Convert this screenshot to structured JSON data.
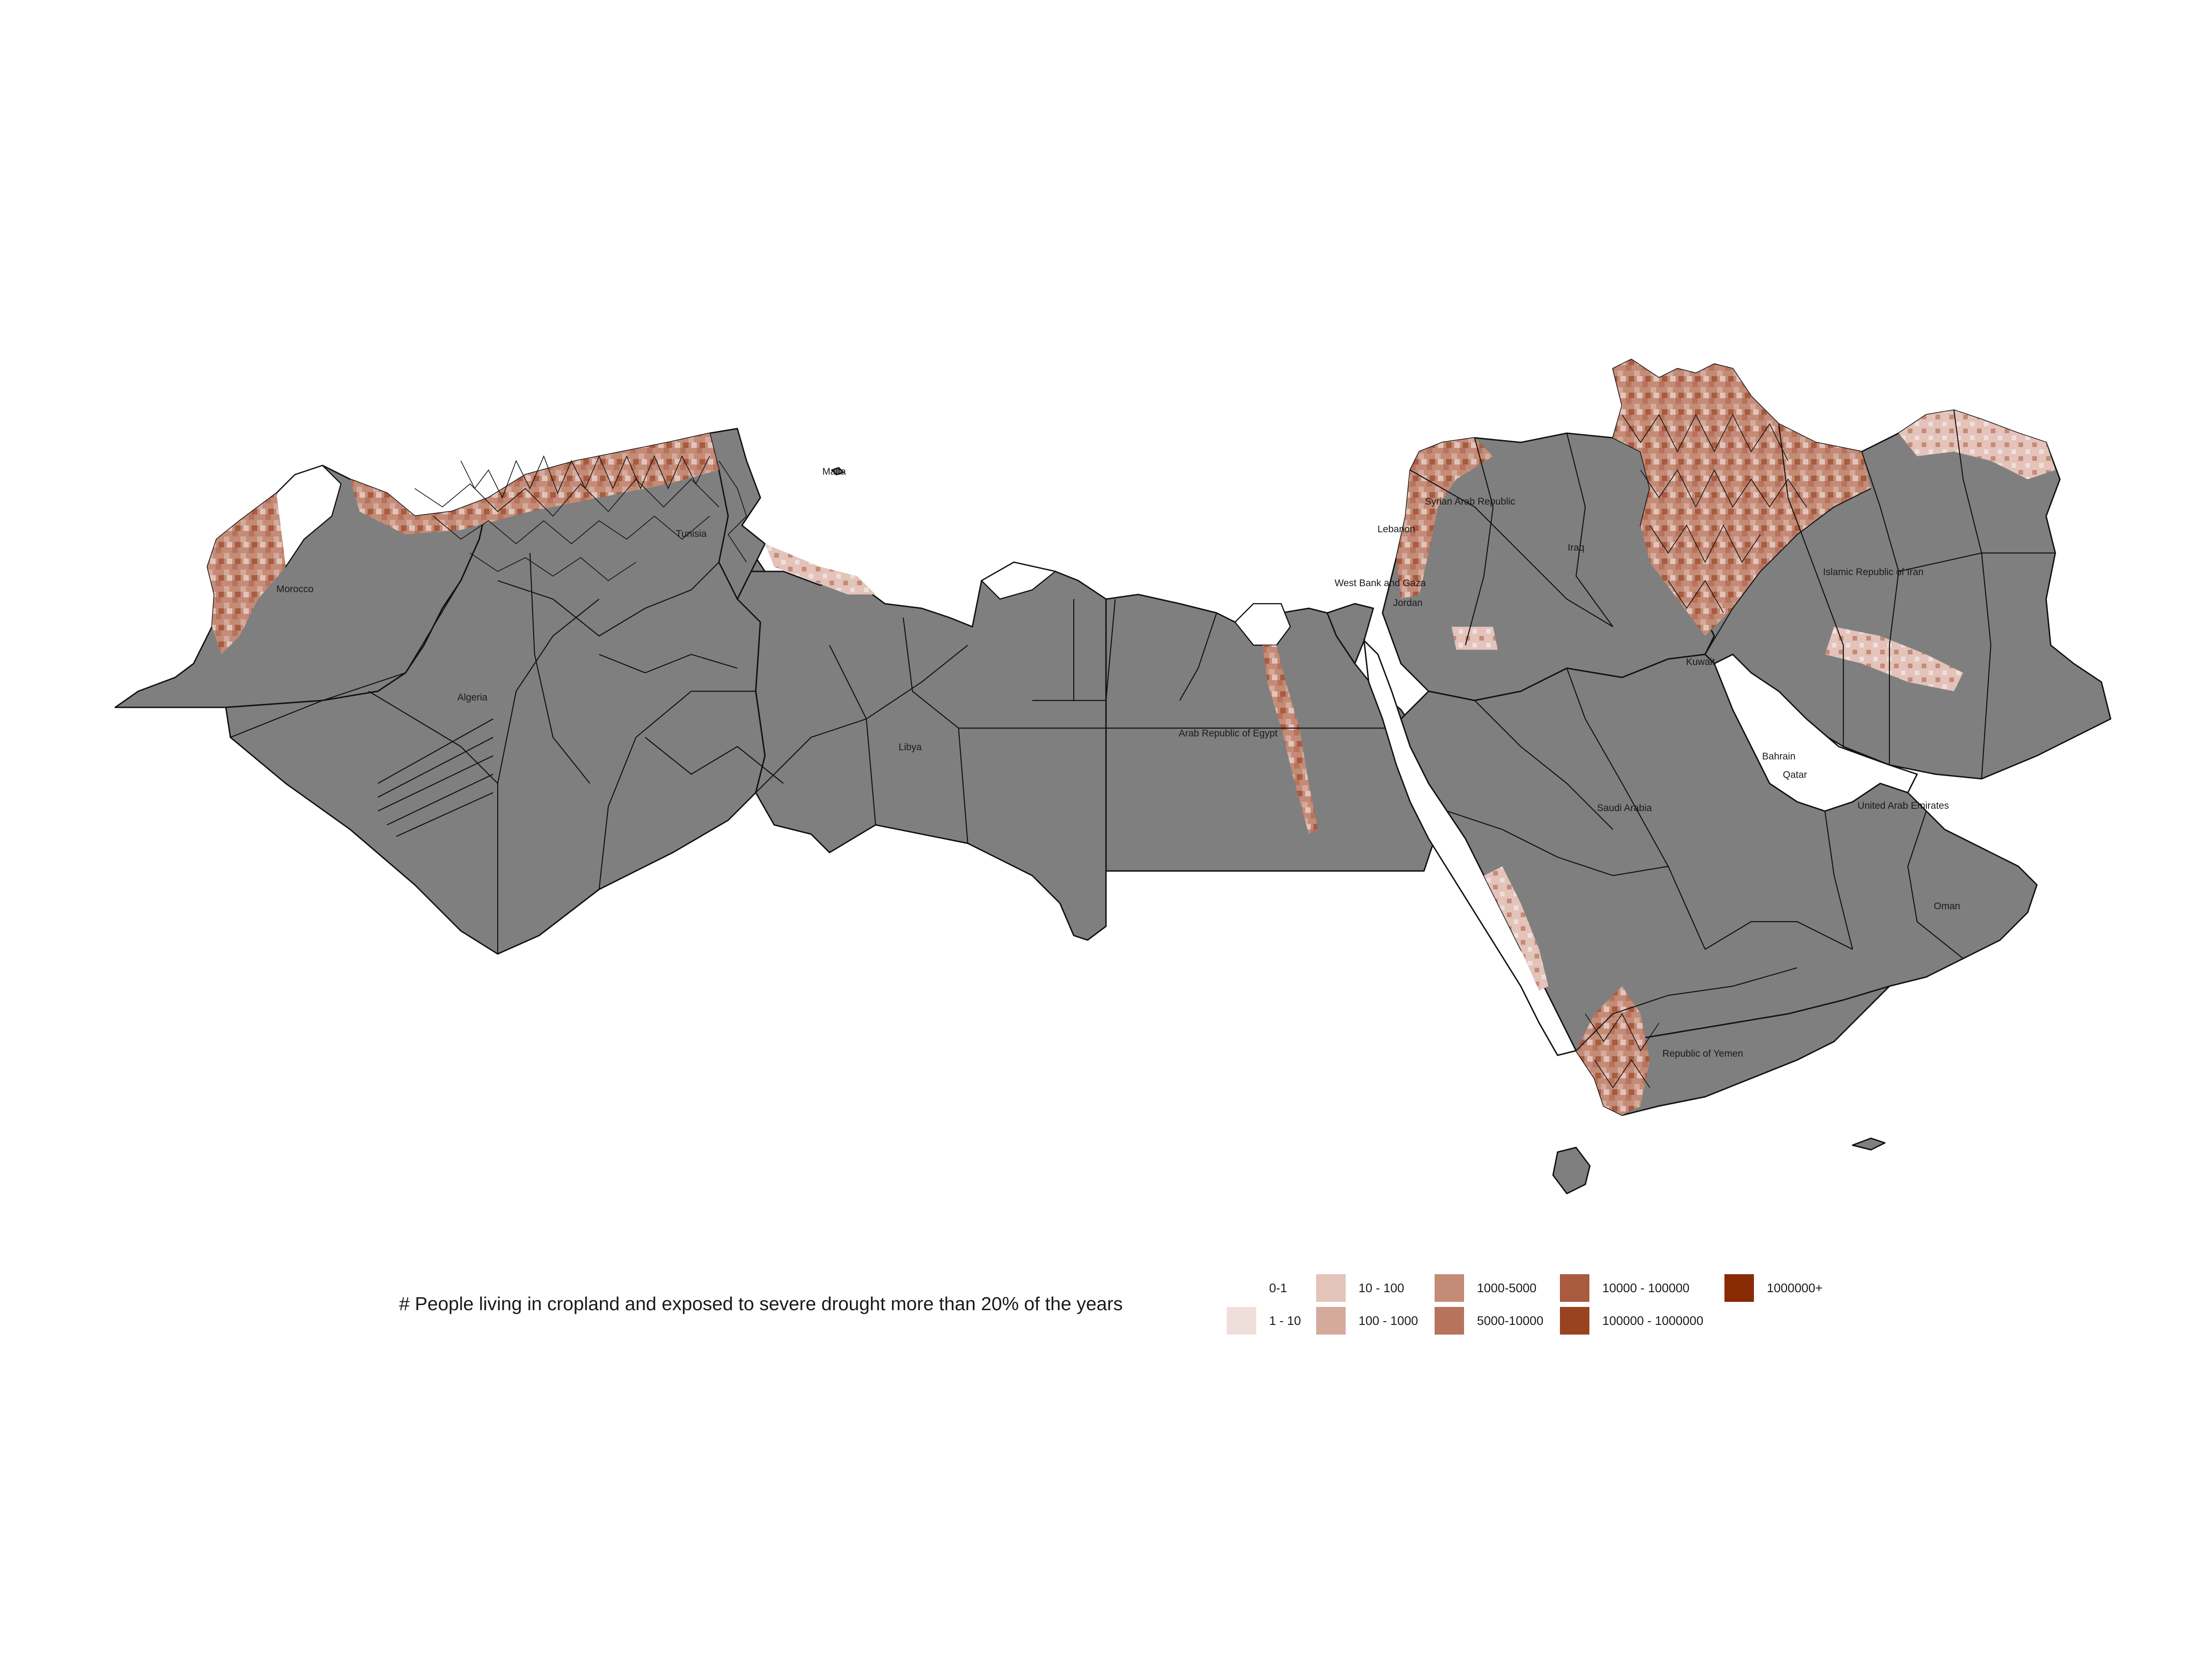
{
  "map": {
    "country_labels": [
      {
        "id": "malta",
        "text": "Malta"
      },
      {
        "id": "algeria",
        "text": "Algeria"
      },
      {
        "id": "morocco",
        "text": "Morocco"
      },
      {
        "id": "tunisia",
        "text": "Tunisia"
      },
      {
        "id": "libya",
        "text": "Libya"
      },
      {
        "id": "egypt",
        "text": "Arab Republic of Egypt"
      },
      {
        "id": "syria",
        "text": "Syrian Arab Republic"
      },
      {
        "id": "lebanon",
        "text": "Lebanon"
      },
      {
        "id": "iraq",
        "text": "Iraq"
      },
      {
        "id": "west-bank",
        "text": "West Bank and Gaza"
      },
      {
        "id": "jordan",
        "text": "Jordan"
      },
      {
        "id": "iran",
        "text": "Islamic Republic of Iran"
      },
      {
        "id": "kuwait",
        "text": "Kuwait"
      },
      {
        "id": "bahrain",
        "text": "Bahrain"
      },
      {
        "id": "qatar",
        "text": "Qatar"
      },
      {
        "id": "uae",
        "text": "United Arab Emirates"
      },
      {
        "id": "saudi",
        "text": "Saudi Arabia"
      },
      {
        "id": "oman",
        "text": "Oman"
      },
      {
        "id": "yemen",
        "text": "Republic of Yemen"
      }
    ],
    "base_fill": "#7f7f7f",
    "border_color": "#111111"
  },
  "legend": {
    "title": "# People living in cropland and exposed to severe drought more than 20% of the years",
    "items": [
      {
        "label": "0-1",
        "color": "#ffffff"
      },
      {
        "label": "1 - 10",
        "color": "#efdfdb"
      },
      {
        "label": "10 - 100",
        "color": "#e3c3ba"
      },
      {
        "label": "100 - 1000",
        "color": "#d5aa9c"
      },
      {
        "label": "1000-5000",
        "color": "#c48b77"
      },
      {
        "label": "5000-10000",
        "color": "#b7735c"
      },
      {
        "label": "10000 - 100000",
        "color": "#a85b3f"
      },
      {
        "label": "100000 - 1000000",
        "color": "#9a4320"
      },
      {
        "label": "1000000+",
        "color": "#8a2a05"
      }
    ]
  }
}
